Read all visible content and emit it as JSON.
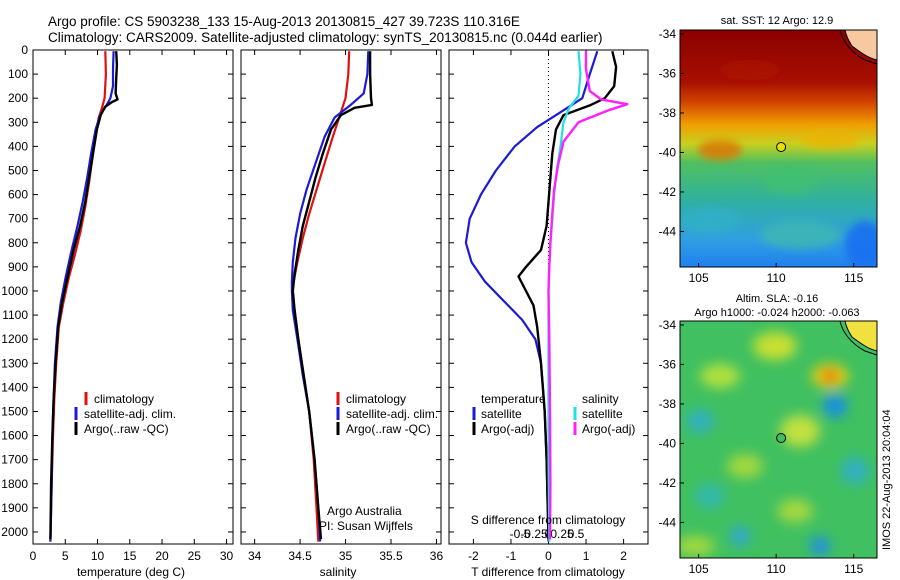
{
  "header": {
    "line1": "Argo profile: CS 5903238_133 15-Aug-2013 20130815_427 39.723S 110.316E",
    "line2": "Climatology: CARS2009. Satellite-adjusted climatology: synTS_20130815.nc (0.044d earlier)"
  },
  "colors": {
    "climatology": "#e01010",
    "satellite": "#1a1ad8",
    "argo": "#000000",
    "sal_satellite": "#20e0e0",
    "sal_argo": "#ff20ff"
  },
  "legend1": {
    "climatology": "climatology",
    "satellite": "satellite-adj. clim.",
    "argo": "Argo(..raw -QC)"
  },
  "legend3": {
    "temp_head": "temperature",
    "temp_sat": "satellite",
    "temp_argo": "Argo(-adj)",
    "sal_head": "salinity",
    "sal_sat": "satellite",
    "sal_argo": "Argo(-adj)"
  },
  "credit": {
    "line1": "Argo Australia",
    "line2": "PI: Susan Wijffels"
  },
  "map1": {
    "title": "sat. SST: 12 Argo: 12.9"
  },
  "map2": {
    "title1": "Altim. SLA: -0.16",
    "title2": "Argo h1000: -0.024 h2000: -0.063"
  },
  "stamp": "IMOS 22-Aug-2013 20:04:04",
  "chart_data": [
    {
      "type": "line",
      "id": "temperature",
      "xlabel": "temperature (deg C)",
      "xlim": [
        0,
        31
      ],
      "ylim": [
        2050,
        0
      ],
      "xticks": [
        0,
        5,
        10,
        15,
        20,
        25,
        30
      ],
      "yticks": [
        0,
        100,
        200,
        300,
        400,
        500,
        600,
        700,
        800,
        900,
        1000,
        1100,
        1200,
        1300,
        1400,
        1500,
        1600,
        1700,
        1800,
        1900,
        2000
      ],
      "series": [
        {
          "name": "climatology",
          "color_key": "climatology",
          "values": [
            [
              11.2,
              5
            ],
            [
              11.3,
              100
            ],
            [
              11.1,
              200
            ],
            [
              10.7,
              240
            ],
            [
              10.2,
              280
            ],
            [
              9.7,
              350
            ],
            [
              9.2,
              450
            ],
            [
              8.7,
              550
            ],
            [
              8.1,
              650
            ],
            [
              7.4,
              750
            ],
            [
              6.5,
              850
            ],
            [
              5.5,
              950
            ],
            [
              4.7,
              1050
            ],
            [
              4.0,
              1150
            ],
            [
              3.6,
              1300
            ],
            [
              3.3,
              1450
            ],
            [
              3.1,
              1600
            ],
            [
              2.9,
              1800
            ],
            [
              2.7,
              2040
            ]
          ]
        },
        {
          "name": "satellite-adj. clim.",
          "color_key": "satellite",
          "values": [
            [
              12.5,
              5
            ],
            [
              12.4,
              80
            ],
            [
              12.4,
              150
            ],
            [
              12.0,
              200
            ],
            [
              11.4,
              230
            ],
            [
              10.4,
              270
            ],
            [
              9.7,
              330
            ],
            [
              9.0,
              430
            ],
            [
              8.4,
              530
            ],
            [
              7.7,
              630
            ],
            [
              6.9,
              730
            ],
            [
              5.9,
              840
            ],
            [
              5.0,
              950
            ],
            [
              4.3,
              1050
            ],
            [
              3.8,
              1150
            ],
            [
              3.4,
              1300
            ],
            [
              3.2,
              1450
            ],
            [
              3.0,
              1600
            ],
            [
              2.9,
              1800
            ],
            [
              2.7,
              2040
            ]
          ]
        },
        {
          "name": "Argo(..raw -QC)",
          "color_key": "argo",
          "values": [
            [
              12.9,
              5
            ],
            [
              13.0,
              60
            ],
            [
              12.9,
              120
            ],
            [
              12.8,
              180
            ],
            [
              13.1,
              205
            ],
            [
              12.3,
              215
            ],
            [
              11.2,
              235
            ],
            [
              10.5,
              270
            ],
            [
              9.9,
              330
            ],
            [
              9.3,
              430
            ],
            [
              8.7,
              530
            ],
            [
              8.1,
              630
            ],
            [
              7.3,
              730
            ],
            [
              6.3,
              830
            ],
            [
              5.3,
              950
            ],
            [
              4.5,
              1050
            ],
            [
              3.9,
              1150
            ],
            [
              3.5,
              1300
            ],
            [
              3.2,
              1450
            ],
            [
              3.0,
              1600
            ],
            [
              2.8,
              1800
            ],
            [
              2.7,
              2030
            ]
          ]
        }
      ],
      "legend": "lower-center"
    },
    {
      "type": "line",
      "id": "salinity",
      "xlabel": "salinity",
      "xlim": [
        33.85,
        36.05
      ],
      "ylim": [
        2050,
        0
      ],
      "xticks": [
        34,
        34.5,
        35,
        35.5,
        36
      ],
      "series": [
        {
          "name": "climatology",
          "color_key": "climatology",
          "values": [
            [
              35.04,
              5
            ],
            [
              35.03,
              100
            ],
            [
              35.0,
              200
            ],
            [
              34.93,
              280
            ],
            [
              34.86,
              360
            ],
            [
              34.77,
              470
            ],
            [
              34.68,
              580
            ],
            [
              34.6,
              680
            ],
            [
              34.53,
              780
            ],
            [
              34.47,
              880
            ],
            [
              34.43,
              960
            ],
            [
              34.42,
              1000
            ],
            [
              34.44,
              1080
            ],
            [
              34.48,
              1200
            ],
            [
              34.54,
              1350
            ],
            [
              34.6,
              1500
            ],
            [
              34.65,
              1700
            ],
            [
              34.68,
              1900
            ],
            [
              34.7,
              2040
            ]
          ]
        },
        {
          "name": "satellite-adj. clim.",
          "color_key": "satellite",
          "values": [
            [
              35.25,
              5
            ],
            [
              35.24,
              100
            ],
            [
              35.2,
              180
            ],
            [
              35.05,
              230
            ],
            [
              34.88,
              280
            ],
            [
              34.77,
              360
            ],
            [
              34.67,
              470
            ],
            [
              34.57,
              580
            ],
            [
              34.5,
              680
            ],
            [
              34.45,
              780
            ],
            [
              34.42,
              880
            ],
            [
              34.41,
              960
            ],
            [
              34.41,
              1000
            ],
            [
              34.42,
              1080
            ],
            [
              34.47,
              1200
            ],
            [
              34.53,
              1350
            ],
            [
              34.6,
              1500
            ],
            [
              34.66,
              1700
            ],
            [
              34.7,
              1900
            ],
            [
              34.72,
              2040
            ]
          ]
        },
        {
          "name": "Argo(..raw -QC)",
          "color_key": "argo",
          "values": [
            [
              35.27,
              5
            ],
            [
              35.27,
              100
            ],
            [
              35.28,
              200
            ],
            [
              35.29,
              228
            ],
            [
              35.1,
              240
            ],
            [
              34.95,
              270
            ],
            [
              34.84,
              330
            ],
            [
              34.75,
              430
            ],
            [
              34.67,
              530
            ],
            [
              34.6,
              630
            ],
            [
              34.53,
              730
            ],
            [
              34.48,
              830
            ],
            [
              34.44,
              930
            ],
            [
              34.42,
              1000
            ],
            [
              34.44,
              1080
            ],
            [
              34.48,
              1200
            ],
            [
              34.54,
              1350
            ],
            [
              34.6,
              1500
            ],
            [
              34.66,
              1700
            ],
            [
              34.7,
              1900
            ],
            [
              34.73,
              2030
            ]
          ]
        }
      ],
      "legend": "lower-center"
    },
    {
      "type": "line",
      "id": "difference",
      "xlabel": "T difference from climatology",
      "xlabel_top": "S difference from climatology",
      "xlim": [
        -2.65,
        2.65
      ],
      "ylim": [
        2050,
        0
      ],
      "xticks": [
        -2,
        -1,
        0,
        1,
        2
      ],
      "xticks_top": [
        -0.5,
        -0.25,
        0,
        0.25,
        0.5
      ],
      "xticks_top_labels": [
        "-0.5",
        "-0.25",
        "0",
        "0.25",
        "0.5"
      ],
      "series": [
        {
          "name": "temperature satellite",
          "color_key": "satellite",
          "values": [
            [
              1.3,
              5
            ],
            [
              1.1,
              100
            ],
            [
              0.9,
              200
            ],
            [
              0.3,
              260
            ],
            [
              -0.3,
              320
            ],
            [
              -0.9,
              400
            ],
            [
              -1.4,
              500
            ],
            [
              -1.8,
              600
            ],
            [
              -2.1,
              700
            ],
            [
              -2.2,
              800
            ],
            [
              -2.05,
              880
            ],
            [
              -1.7,
              960
            ],
            [
              -1.2,
              1040
            ],
            [
              -0.7,
              1120
            ],
            [
              -0.35,
              1200
            ],
            [
              -0.2,
              1300
            ],
            [
              -0.1,
              1500
            ],
            [
              -0.05,
              1700
            ],
            [
              0,
              2040
            ]
          ]
        },
        {
          "name": "temperature Argo(-adj)",
          "color_key": "argo",
          "values": [
            [
              1.7,
              5
            ],
            [
              1.8,
              70
            ],
            [
              1.75,
              150
            ],
            [
              1.5,
              200
            ],
            [
              1.1,
              230
            ],
            [
              0.4,
              270
            ],
            [
              0.2,
              330
            ],
            [
              0.1,
              430
            ],
            [
              0.05,
              530
            ],
            [
              0,
              630
            ],
            [
              -0.05,
              730
            ],
            [
              -0.2,
              830
            ],
            [
              -0.6,
              900
            ],
            [
              -0.8,
              940
            ],
            [
              -0.6,
              1000
            ],
            [
              -0.4,
              1060
            ],
            [
              -0.3,
              1150
            ],
            [
              -0.2,
              1300
            ],
            [
              -0.1,
              1500
            ],
            [
              -0.05,
              1700
            ],
            [
              0,
              2030
            ]
          ]
        },
        {
          "name": "salinity satellite",
          "color_key": "sal_satellite",
          "values": [
            [
              0.8,
              5
            ],
            [
              0.85,
              100
            ],
            [
              0.8,
              190
            ],
            [
              0.55,
              240
            ],
            [
              0.4,
              300
            ],
            [
              0.32,
              400
            ],
            [
              0.22,
              500
            ],
            [
              0.15,
              600
            ],
            [
              0.1,
              700
            ],
            [
              0.05,
              800
            ],
            [
              0.02,
              900
            ],
            [
              0,
              1000
            ],
            [
              0,
              1100
            ],
            [
              0,
              1300
            ],
            [
              0,
              1500
            ],
            [
              0,
              1700
            ],
            [
              0.02,
              2040
            ]
          ]
        },
        {
          "name": "salinity Argo(-adj)",
          "color_key": "sal_argo",
          "values": [
            [
              1.0,
              5
            ],
            [
              1.0,
              80
            ],
            [
              1.1,
              170
            ],
            [
              1.4,
              205
            ],
            [
              2.1,
              225
            ],
            [
              1.6,
              250
            ],
            [
              0.8,
              300
            ],
            [
              0.4,
              380
            ],
            [
              0.25,
              480
            ],
            [
              0.15,
              580
            ],
            [
              0.1,
              680
            ],
            [
              0.05,
              800
            ],
            [
              0.02,
              900
            ],
            [
              0,
              1000
            ],
            [
              0.02,
              1200
            ],
            [
              0.04,
              1500
            ],
            [
              0.05,
              1800
            ],
            [
              0.04,
              2030
            ]
          ]
        }
      ],
      "legend": "lower-center"
    },
    {
      "type": "heatmap",
      "id": "sst_map",
      "title": "sat. SST: 12 Argo: 12.9",
      "xlim": [
        103.8,
        116.5
      ],
      "ylim": [
        -45.8,
        -33.8
      ],
      "xticks": [
        105,
        110,
        115
      ],
      "yticks": [
        -34,
        -36,
        -38,
        -40,
        -42,
        -44
      ],
      "marker": [
        110.316,
        -39.723
      ]
    },
    {
      "type": "heatmap",
      "id": "sla_map",
      "title": "Altim. SLA: -0.16",
      "subtitle": "Argo h1000: -0.024 h2000: -0.063",
      "xlim": [
        103.8,
        116.5
      ],
      "ylim": [
        -45.8,
        -33.8
      ],
      "xticks": [
        105,
        110,
        115
      ],
      "yticks": [
        -34,
        -36,
        -38,
        -40,
        -42,
        -44
      ],
      "marker": [
        110.316,
        -39.723
      ]
    }
  ]
}
